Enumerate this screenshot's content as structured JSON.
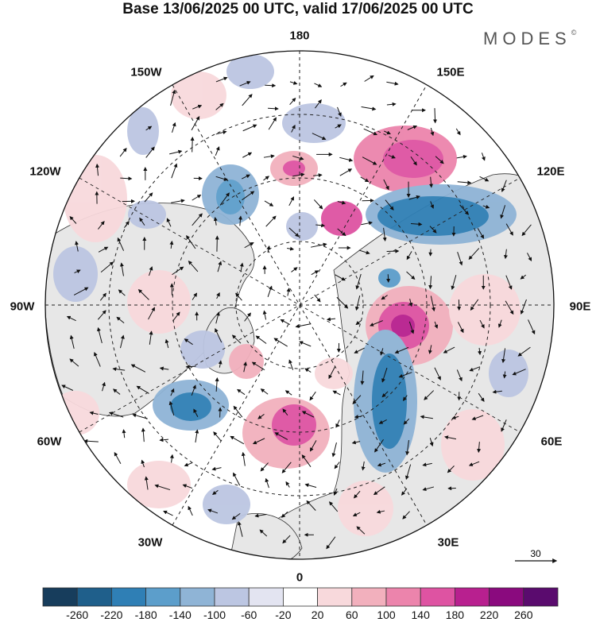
{
  "title": "Base 13/06/2025 00 UTC, valid 17/06/2025 00 UTC",
  "brand": {
    "name": "MODES",
    "mark": "©"
  },
  "meridian_labels": {
    "top": "180",
    "bottom": "0",
    "left": "90W",
    "right": "90E",
    "upper_left": "150W",
    "upper_right": "150E",
    "mid_left_upper": "120W",
    "mid_right_upper": "120E",
    "mid_left_lower": "60W",
    "mid_right_lower": "60E",
    "lower_left": "30W",
    "lower_right": "30E"
  },
  "vector_scale": {
    "value": "30"
  },
  "colorbar": {
    "levels": [
      "-260",
      "-220",
      "-180",
      "-140",
      "-100",
      "-60",
      "-20",
      "20",
      "60",
      "100",
      "140",
      "180",
      "220",
      "260"
    ],
    "colors": [
      "#173d5c",
      "#1f5f8b",
      "#2f7fb5",
      "#5c9ecb",
      "#8fb4d6",
      "#bcc6e2",
      "#e3e4f1",
      "#ffffff",
      "#f8d9dc",
      "#f2b0bd",
      "#ec84ac",
      "#de53a2",
      "#b8208f",
      "#8a0a7e",
      "#5a0b6e"
    ]
  },
  "colors": {
    "land": "#e7e7e7",
    "ocean": "#ffffff",
    "outline": "#222222"
  }
}
